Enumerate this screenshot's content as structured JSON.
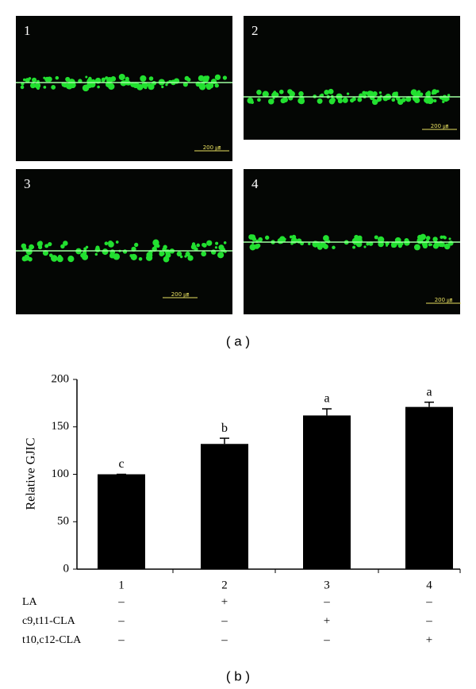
{
  "figure_a": {
    "caption": "( a )",
    "panels": [
      {
        "label": "1",
        "scale_bar": "200 ㎛"
      },
      {
        "label": "2",
        "scale_bar": "200 ㎛"
      },
      {
        "label": "3",
        "scale_bar": "200 ㎛"
      },
      {
        "label": "4",
        "scale_bar": "200 ㎛"
      }
    ]
  },
  "chart_data": {
    "type": "bar",
    "caption": "( b )",
    "ylabel": "Relative GJIC",
    "categories": [
      "1",
      "2",
      "3",
      "4"
    ],
    "values": [
      100,
      132,
      162,
      171
    ],
    "errors": [
      0,
      6,
      7,
      5
    ],
    "annotations": [
      "c",
      "b",
      "a",
      "a"
    ],
    "color": "#000000",
    "ylim": [
      0,
      200
    ],
    "yticks": [
      0,
      50,
      100,
      150,
      200
    ],
    "treatments": [
      {
        "name": "LA",
        "signs": [
          "–",
          "+",
          "–",
          "–"
        ]
      },
      {
        "name": "c9,t11-CLA",
        "signs": [
          "–",
          "–",
          "+",
          "–"
        ]
      },
      {
        "name": "t10,c12-CLA",
        "signs": [
          "–",
          "–",
          "–",
          "+"
        ]
      }
    ]
  }
}
